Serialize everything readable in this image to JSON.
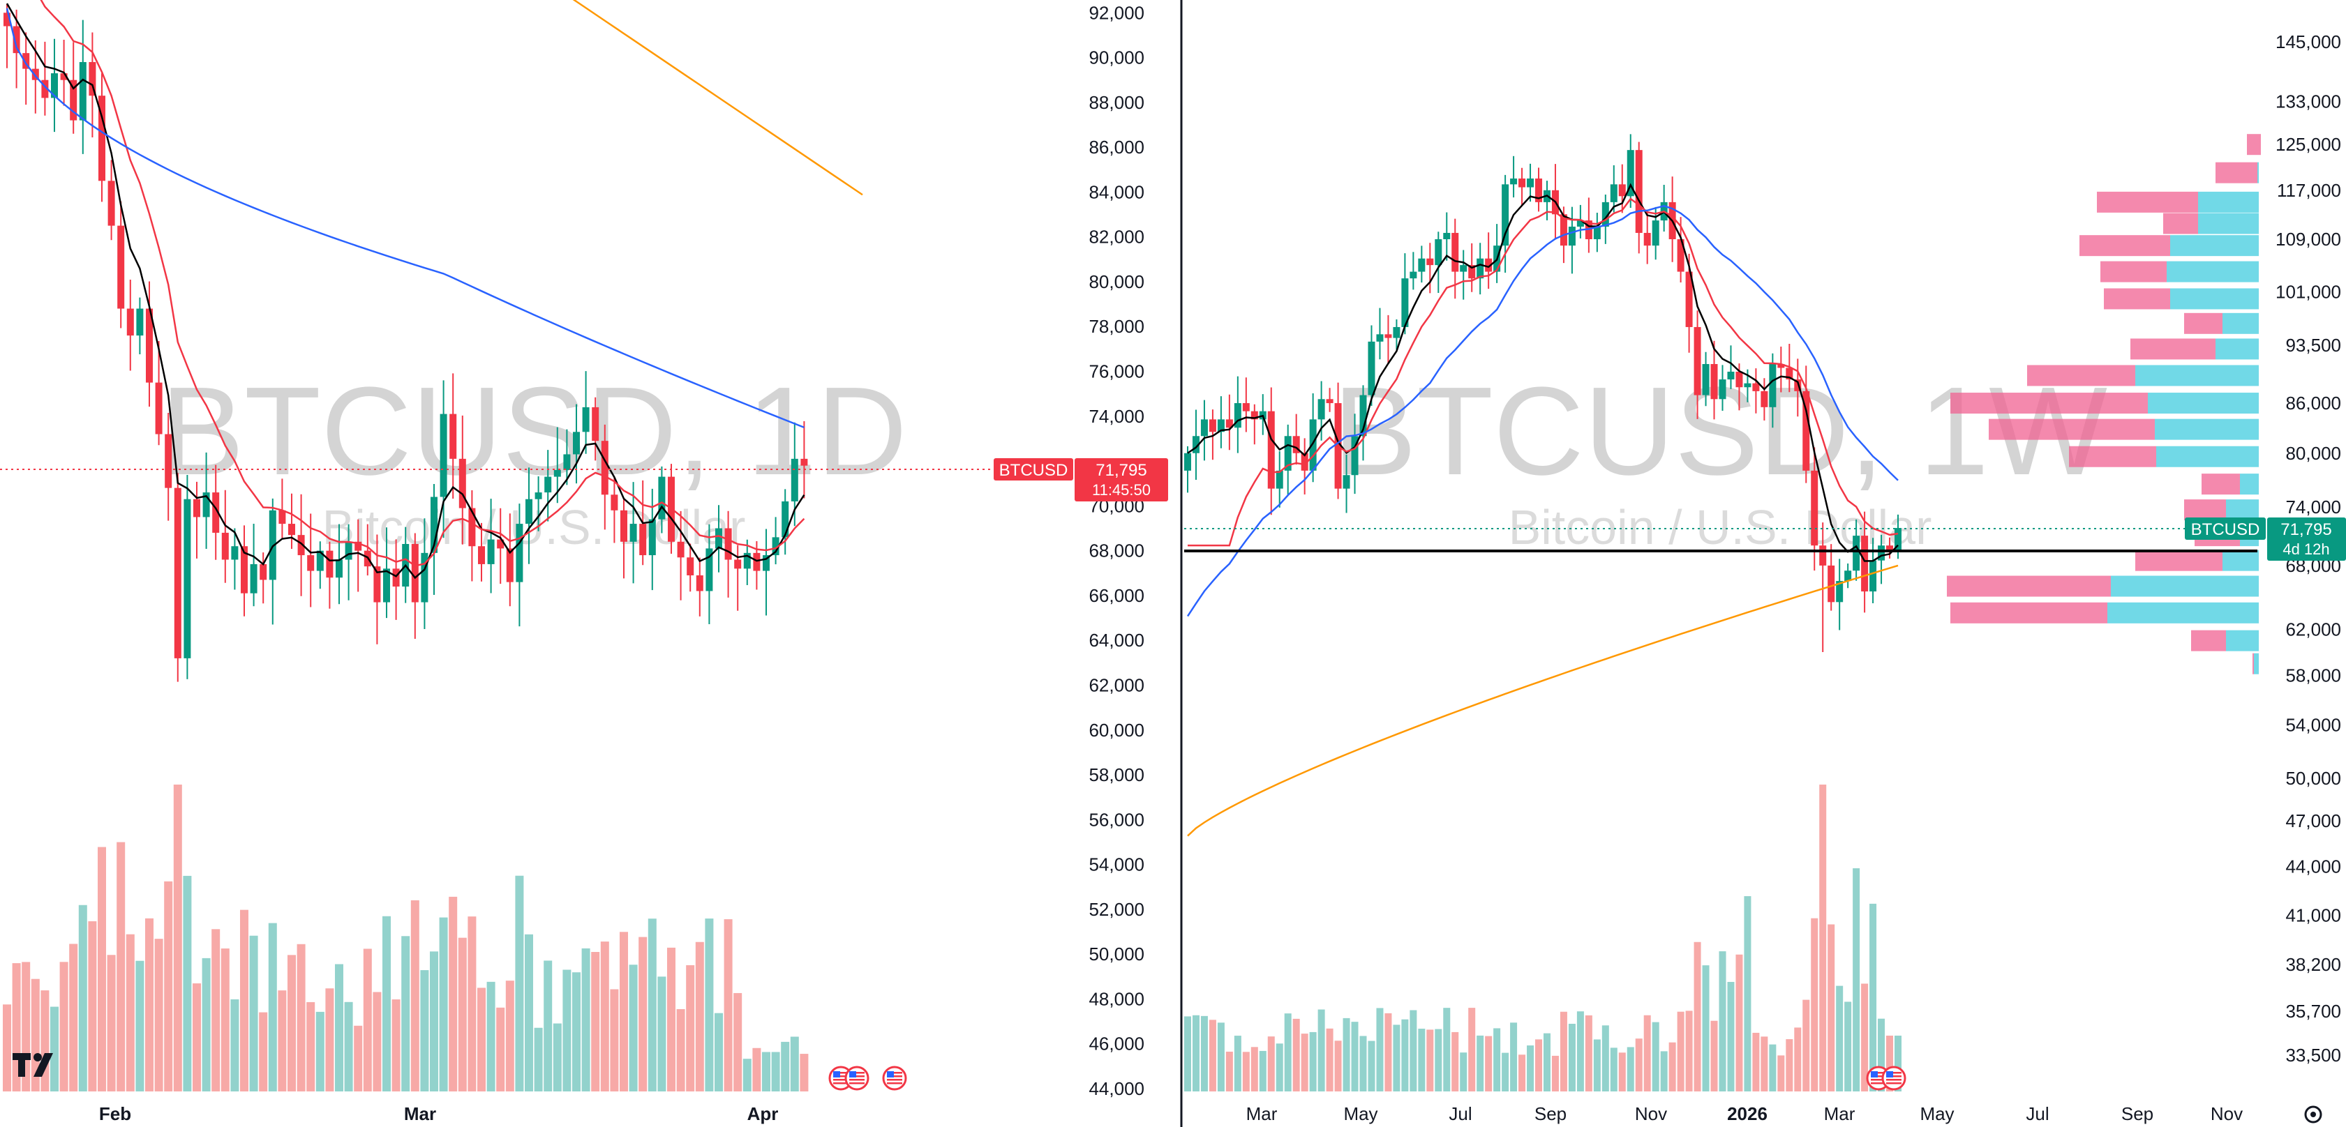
{
  "left_chart": {
    "symbol_watermark": "BTCUSD, 1D",
    "name_watermark": "Bitcoin / U.S. Dollar",
    "y_axis_ticks": [
      92000,
      90000,
      88000,
      86000,
      84000,
      82000,
      80000,
      78000,
      76000,
      74000,
      70000,
      68000,
      66000,
      64000,
      62000,
      60000,
      58000,
      56000,
      54000,
      52000,
      50000,
      48000,
      46000,
      44000
    ],
    "x_axis_labels": [
      "Feb",
      "Mar",
      "Apr"
    ],
    "price_badge": {
      "symbol": "BTCUSD",
      "price": "71,795",
      "countdown": "11:45:50"
    },
    "current_price": 71795
  },
  "right_chart": {
    "symbol_watermark": "BTCUSD, 1W",
    "name_watermark": "Bitcoin / U.S. Dollar",
    "y_axis_ticks": [
      145000,
      133000,
      125000,
      117000,
      109000,
      101000,
      93500,
      86000,
      80000,
      74000,
      68000,
      62000,
      58000,
      54000,
      50000,
      47000,
      44000,
      41000,
      38200,
      35700,
      33500
    ],
    "x_axis_labels": [
      "Mar",
      "May",
      "Jul",
      "Sep",
      "Nov",
      "2026",
      "Mar",
      "May",
      "Jul",
      "Sep",
      "Nov"
    ],
    "price_badge": {
      "symbol": "BTCUSD",
      "price": "71,795",
      "countdown": "4d 12h"
    },
    "current_price": 71795,
    "horizontal_line_price": 68000
  },
  "logo_icon": "tradingview-logo-icon",
  "flag_icon": "us-flag-icon",
  "colors": {
    "up": "#089981",
    "down": "#f23645",
    "up_volume": "#92d2cc",
    "down_volume": "#f7a9a7",
    "ma_fast": "#000000",
    "ma_red": "#f23645",
    "ma_blue": "#2962ff",
    "ma_orange": "#ff9800",
    "profile_pink": "#f06292",
    "profile_cyan": "#4dd0e1"
  }
}
